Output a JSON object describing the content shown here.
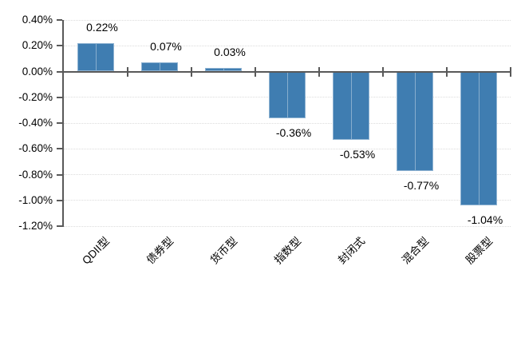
{
  "chart_data": {
    "type": "bar",
    "title": "",
    "xlabel": "",
    "ylabel": "",
    "categories": [
      "QDII型",
      "债券型",
      "货币型",
      "指数型",
      "封闭式",
      "混合型",
      "股票型"
    ],
    "values": [
      0.22,
      0.07,
      0.03,
      -0.36,
      -0.53,
      -0.77,
      -1.04
    ],
    "data_labels": [
      "0.22%",
      "0.07%",
      "0.03%",
      "-0.36%",
      "-0.53%",
      "-0.77%",
      "-1.04%"
    ],
    "y_axis": {
      "unit": "%",
      "max": 0.4,
      "min": -1.2,
      "step": 0.2,
      "tick_values": [
        0.4,
        0.2,
        0.0,
        -0.2,
        -0.4,
        -0.6,
        -0.8,
        -1.0,
        -1.2
      ],
      "tick_labels": [
        "0.40%",
        "0.20%",
        "0.00%",
        "-0.20%",
        "-0.40%",
        "-0.60%",
        "-0.80%",
        "-1.00%",
        "-1.20%"
      ]
    },
    "grid": true,
    "legend_position": "none",
    "category_label_rotation_deg": -45,
    "colors": {
      "bar_fill": "#3f7db1",
      "bar_border": "#8fb3d2",
      "axis": "#595959",
      "gridline": "#dcdcdc",
      "text": "#000000",
      "background": "#ffffff"
    }
  }
}
